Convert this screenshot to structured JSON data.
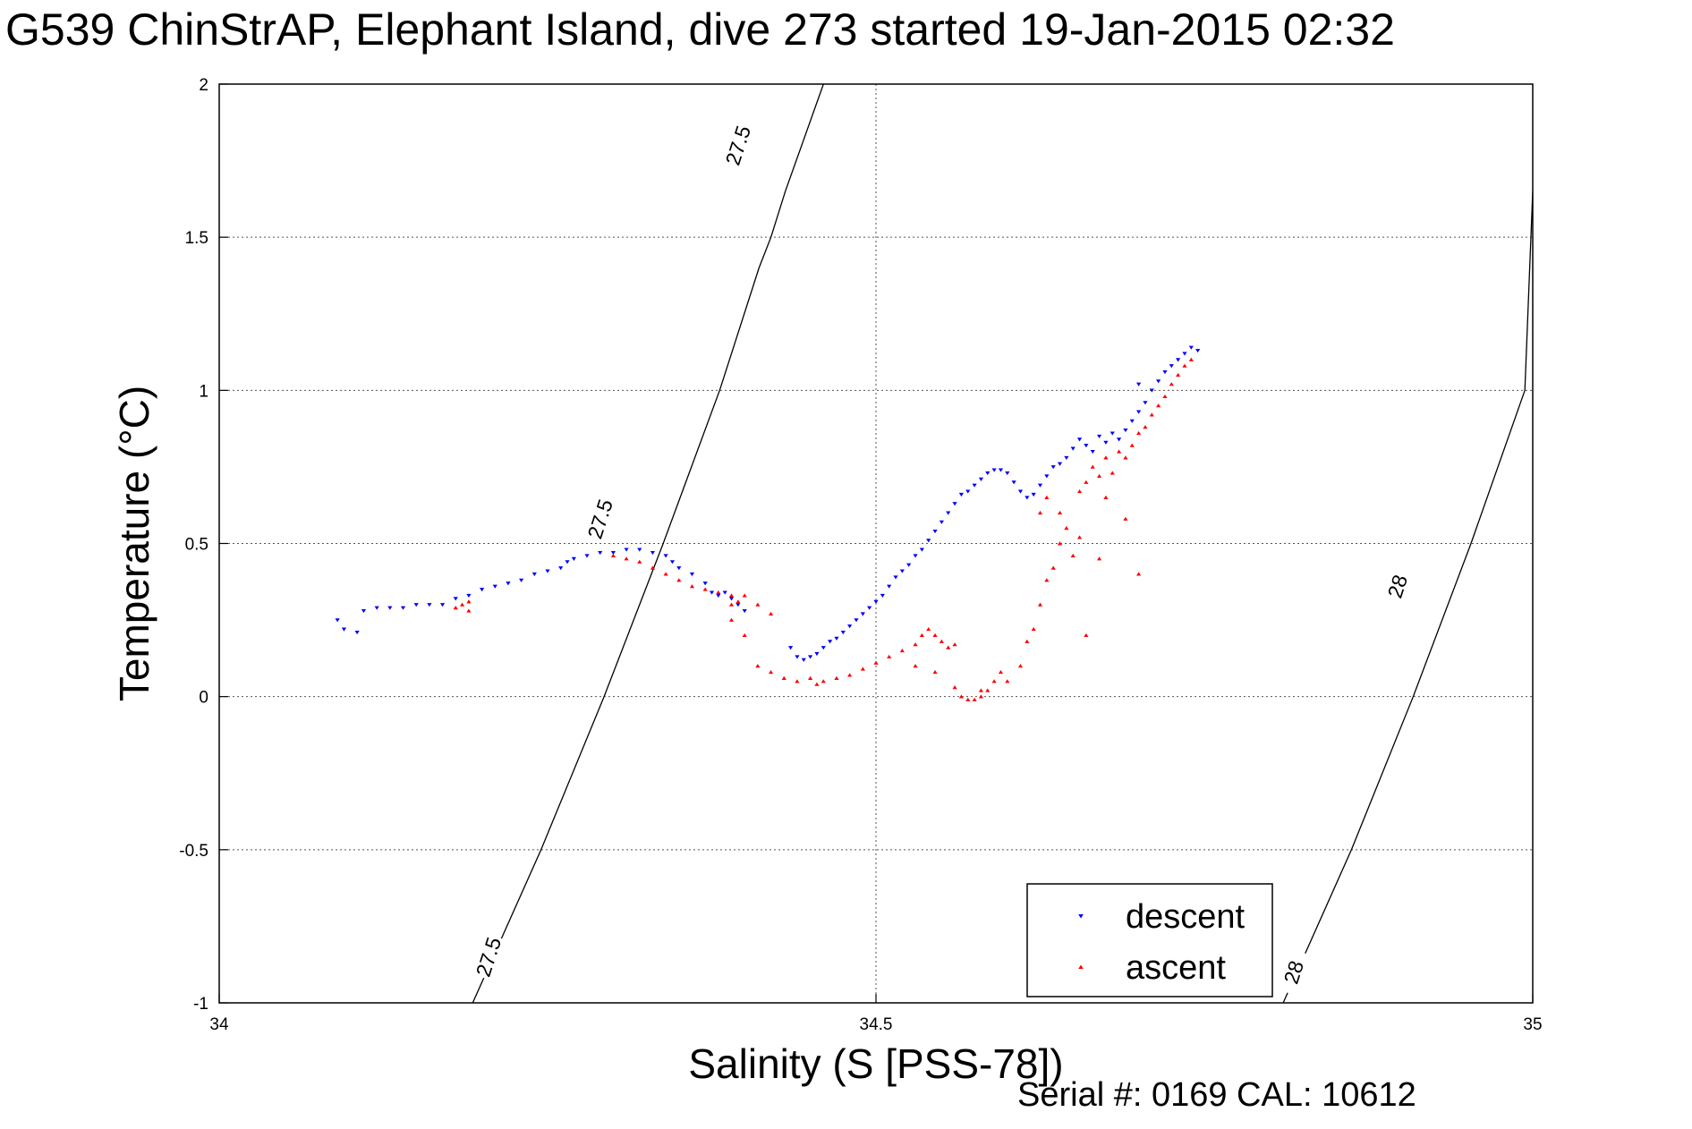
{
  "chart_data": {
    "type": "scatter",
    "title": "G539 ChinStrAP, Elephant Island, dive 273 started 19-Jan-2015 02:32",
    "xlabel": "Salinity (S [PSS-78])",
    "ylabel": "Temperature (°C)",
    "xlim": [
      34,
      35
    ],
    "ylim": [
      -1,
      2
    ],
    "x_ticks": [
      "34",
      "34.5",
      "35"
    ],
    "y_ticks": [
      "-1",
      "-0.5",
      "0",
      "0.5",
      "1",
      "1.5",
      "2"
    ],
    "grid": true,
    "legend_position": "bottom-right",
    "contours": [
      {
        "label": "27.5",
        "points": [
          [
            34.193,
            -1.0
          ],
          [
            34.245,
            -0.5
          ],
          [
            34.293,
            0.0
          ],
          [
            34.338,
            0.5
          ],
          [
            34.381,
            1.0
          ],
          [
            34.42,
            1.5
          ],
          [
            34.411,
            1.4
          ],
          [
            34.431,
            1.65
          ],
          [
            34.46,
            2.0
          ]
        ],
        "label_positions": [
          [
            34.205,
            -0.85
          ],
          [
            34.29,
            0.58
          ],
          [
            34.395,
            1.8
          ]
        ]
      },
      {
        "label": "28",
        "points": [
          [
            34.81,
            -1.0
          ],
          [
            34.862,
            -0.5
          ],
          [
            34.909,
            0.0
          ],
          [
            34.953,
            0.5
          ],
          [
            34.994,
            1.0
          ],
          [
            35.0,
            1.65
          ]
        ],
        "label_positions": [
          [
            34.818,
            -0.9
          ],
          [
            34.897,
            0.36
          ]
        ]
      }
    ],
    "series": [
      {
        "name": "descent",
        "color": "#0000ff",
        "marker": "triangle-down",
        "points": [
          [
            34.09,
            0.25
          ],
          [
            34.095,
            0.22
          ],
          [
            34.105,
            0.21
          ],
          [
            34.11,
            0.28
          ],
          [
            34.12,
            0.29
          ],
          [
            34.13,
            0.29
          ],
          [
            34.14,
            0.29
          ],
          [
            34.15,
            0.3
          ],
          [
            34.16,
            0.3
          ],
          [
            34.17,
            0.3
          ],
          [
            34.18,
            0.32
          ],
          [
            34.19,
            0.33
          ],
          [
            34.2,
            0.35
          ],
          [
            34.21,
            0.36
          ],
          [
            34.22,
            0.37
          ],
          [
            34.23,
            0.38
          ],
          [
            34.24,
            0.4
          ],
          [
            34.25,
            0.41
          ],
          [
            34.26,
            0.42
          ],
          [
            34.265,
            0.44
          ],
          [
            34.27,
            0.45
          ],
          [
            34.28,
            0.46
          ],
          [
            34.29,
            0.47
          ],
          [
            34.3,
            0.47
          ],
          [
            34.31,
            0.48
          ],
          [
            34.32,
            0.48
          ],
          [
            34.33,
            0.47
          ],
          [
            34.34,
            0.46
          ],
          [
            34.345,
            0.44
          ],
          [
            34.35,
            0.42
          ],
          [
            34.36,
            0.4
          ],
          [
            34.37,
            0.37
          ],
          [
            34.375,
            0.34
          ],
          [
            34.38,
            0.33
          ],
          [
            34.385,
            0.34
          ],
          [
            34.39,
            0.32
          ],
          [
            34.395,
            0.3
          ],
          [
            34.4,
            0.28
          ],
          [
            34.435,
            0.16
          ],
          [
            34.44,
            0.13
          ],
          [
            34.445,
            0.12
          ],
          [
            34.45,
            0.13
          ],
          [
            34.455,
            0.14
          ],
          [
            34.46,
            0.16
          ],
          [
            34.465,
            0.18
          ],
          [
            34.47,
            0.19
          ],
          [
            34.475,
            0.21
          ],
          [
            34.48,
            0.23
          ],
          [
            34.485,
            0.25
          ],
          [
            34.49,
            0.27
          ],
          [
            34.495,
            0.29
          ],
          [
            34.5,
            0.31
          ],
          [
            34.505,
            0.33
          ],
          [
            34.51,
            0.36
          ],
          [
            34.515,
            0.39
          ],
          [
            34.52,
            0.41
          ],
          [
            34.525,
            0.43
          ],
          [
            34.53,
            0.46
          ],
          [
            34.535,
            0.48
          ],
          [
            34.54,
            0.51
          ],
          [
            34.545,
            0.54
          ],
          [
            34.55,
            0.57
          ],
          [
            34.555,
            0.6
          ],
          [
            34.56,
            0.63
          ],
          [
            34.565,
            0.66
          ],
          [
            34.57,
            0.67
          ],
          [
            34.575,
            0.69
          ],
          [
            34.58,
            0.71
          ],
          [
            34.585,
            0.73
          ],
          [
            34.59,
            0.74
          ],
          [
            34.595,
            0.74
          ],
          [
            34.6,
            0.73
          ],
          [
            34.605,
            0.7
          ],
          [
            34.61,
            0.67
          ],
          [
            34.615,
            0.65
          ],
          [
            34.62,
            0.66
          ],
          [
            34.625,
            0.69
          ],
          [
            34.63,
            0.72
          ],
          [
            34.635,
            0.75
          ],
          [
            34.64,
            0.76
          ],
          [
            34.645,
            0.78
          ],
          [
            34.65,
            0.81
          ],
          [
            34.655,
            0.84
          ],
          [
            34.66,
            0.82
          ],
          [
            34.665,
            0.8
          ],
          [
            34.67,
            0.85
          ],
          [
            34.675,
            0.83
          ],
          [
            34.68,
            0.86
          ],
          [
            34.685,
            0.84
          ],
          [
            34.69,
            0.87
          ],
          [
            34.695,
            0.9
          ],
          [
            34.7,
            0.93
          ],
          [
            34.705,
            0.96
          ],
          [
            34.71,
            1.0
          ],
          [
            34.715,
            1.03
          ],
          [
            34.72,
            1.06
          ],
          [
            34.725,
            1.08
          ],
          [
            34.73,
            1.1
          ],
          [
            34.735,
            1.12
          ],
          [
            34.74,
            1.14
          ],
          [
            34.745,
            1.13
          ],
          [
            34.7,
            1.02
          ]
        ]
      },
      {
        "name": "ascent",
        "color": "#ff0000",
        "marker": "triangle-up",
        "points": [
          [
            34.18,
            0.29
          ],
          [
            34.185,
            0.3
          ],
          [
            34.19,
            0.31
          ],
          [
            34.19,
            0.28
          ],
          [
            34.3,
            0.46
          ],
          [
            34.31,
            0.45
          ],
          [
            34.32,
            0.44
          ],
          [
            34.33,
            0.42
          ],
          [
            34.34,
            0.4
          ],
          [
            34.35,
            0.38
          ],
          [
            34.36,
            0.36
          ],
          [
            34.37,
            0.35
          ],
          [
            34.38,
            0.34
          ],
          [
            34.39,
            0.33
          ],
          [
            34.395,
            0.31
          ],
          [
            34.39,
            0.25
          ],
          [
            34.39,
            0.3
          ],
          [
            34.4,
            0.33
          ],
          [
            34.41,
            0.3
          ],
          [
            34.42,
            0.27
          ],
          [
            34.4,
            0.2
          ],
          [
            34.41,
            0.1
          ],
          [
            34.42,
            0.08
          ],
          [
            34.43,
            0.06
          ],
          [
            34.44,
            0.05
          ],
          [
            34.45,
            0.06
          ],
          [
            34.455,
            0.04
          ],
          [
            34.46,
            0.05
          ],
          [
            34.47,
            0.06
          ],
          [
            34.48,
            0.07
          ],
          [
            34.49,
            0.09
          ],
          [
            34.5,
            0.11
          ],
          [
            34.51,
            0.13
          ],
          [
            34.52,
            0.15
          ],
          [
            34.53,
            0.17
          ],
          [
            34.535,
            0.2
          ],
          [
            34.54,
            0.22
          ],
          [
            34.545,
            0.2
          ],
          [
            34.55,
            0.18
          ],
          [
            34.555,
            0.16
          ],
          [
            34.56,
            0.17
          ],
          [
            34.53,
            0.1
          ],
          [
            34.545,
            0.08
          ],
          [
            34.56,
            0.03
          ],
          [
            34.565,
            0.0
          ],
          [
            34.57,
            -0.01
          ],
          [
            34.575,
            -0.01
          ],
          [
            34.58,
            0.0
          ],
          [
            34.585,
            0.02
          ],
          [
            34.59,
            0.05
          ],
          [
            34.595,
            0.08
          ],
          [
            34.58,
            0.02
          ],
          [
            34.6,
            0.05
          ],
          [
            34.61,
            0.1
          ],
          [
            34.615,
            0.18
          ],
          [
            34.62,
            0.22
          ],
          [
            34.625,
            0.3
          ],
          [
            34.63,
            0.38
          ],
          [
            34.635,
            0.42
          ],
          [
            34.64,
            0.5
          ],
          [
            34.645,
            0.55
          ],
          [
            34.65,
            0.46
          ],
          [
            34.655,
            0.52
          ],
          [
            34.66,
            0.2
          ],
          [
            34.625,
            0.6
          ],
          [
            34.63,
            0.65
          ],
          [
            34.64,
            0.6
          ],
          [
            34.655,
            0.67
          ],
          [
            34.66,
            0.7
          ],
          [
            34.665,
            0.75
          ],
          [
            34.67,
            0.72
          ],
          [
            34.675,
            0.78
          ],
          [
            34.68,
            0.73
          ],
          [
            34.685,
            0.8
          ],
          [
            34.69,
            0.78
          ],
          [
            34.695,
            0.82
          ],
          [
            34.7,
            0.86
          ],
          [
            34.705,
            0.88
          ],
          [
            34.71,
            0.92
          ],
          [
            34.715,
            0.95
          ],
          [
            34.72,
            0.98
          ],
          [
            34.725,
            1.02
          ],
          [
            34.73,
            1.05
          ],
          [
            34.735,
            1.08
          ],
          [
            34.74,
            1.1
          ],
          [
            34.675,
            0.65
          ],
          [
            34.69,
            0.58
          ],
          [
            34.7,
            0.4
          ],
          [
            34.67,
            0.45
          ]
        ]
      }
    ]
  },
  "footer": {
    "serial_text": "Serial #: 0169 CAL: 10612"
  },
  "colors": {
    "descent": "#0000ff",
    "ascent": "#ff0000",
    "grid": "#555555",
    "axes": "#000000"
  }
}
